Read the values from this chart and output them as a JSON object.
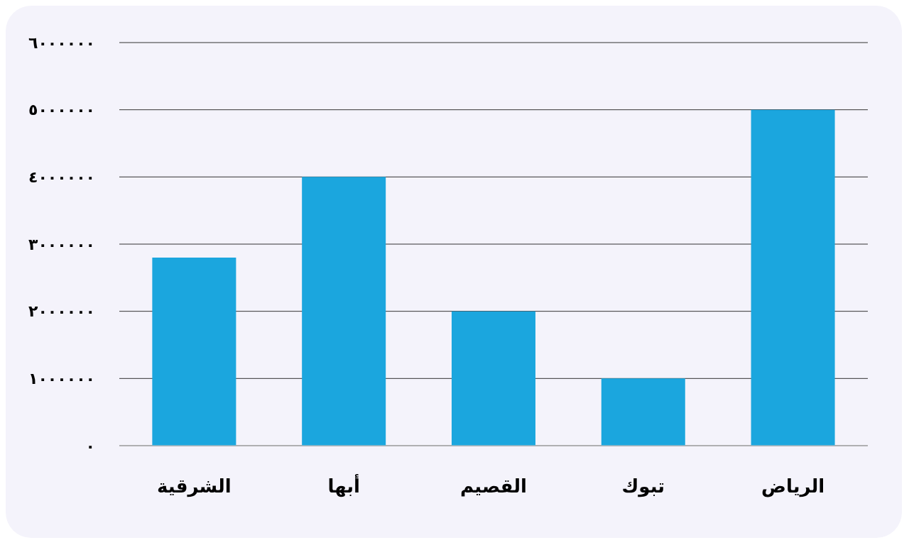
{
  "chart_data": {
    "type": "bar",
    "categories": [
      "الشرقية",
      "أبها",
      "القصيم",
      "تبوك",
      "الرياض"
    ],
    "values": [
      2800000,
      4000000,
      2000000,
      1000000,
      5000000
    ],
    "color": "#1ba6de",
    "ylim": [
      0,
      6000000
    ],
    "yticks": [
      {
        "value": 0,
        "label": "٠"
      },
      {
        "value": 1000000,
        "label": "١٠٠٠٠٠٠"
      },
      {
        "value": 2000000,
        "label": "٢٠٠٠٠٠٠"
      },
      {
        "value": 3000000,
        "label": "٣٠٠٠٠٠٠"
      },
      {
        "value": 4000000,
        "label": "٤٠٠٠٠٠٠"
      },
      {
        "value": 5000000,
        "label": "٥٠٠٠٠٠٠"
      },
      {
        "value": 6000000,
        "label": "٦٠٠٠٠٠٠"
      }
    ],
    "grid": "y",
    "legend": false
  }
}
